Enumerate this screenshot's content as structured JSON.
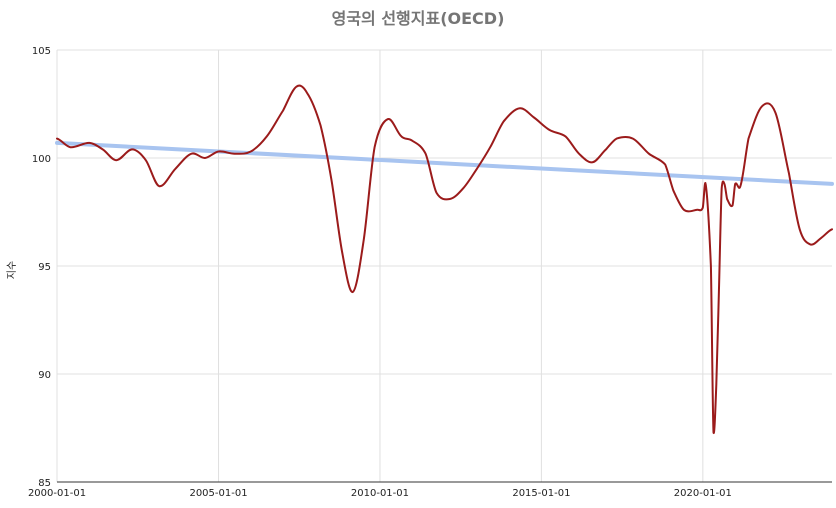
{
  "chart_data": {
    "type": "line",
    "title": "영국의 선행지표(OECD)",
    "ylabel": "지수",
    "xlabel": "",
    "ylim": [
      85,
      105
    ],
    "xlim": [
      "2000-01-01",
      "2024-01-01"
    ],
    "grid": true,
    "yticks": [
      "85",
      "90",
      "95",
      "100",
      "105"
    ],
    "xticks": [
      "2000-01-01",
      "2005-01-01",
      "2010-01-01",
      "2015-01-01",
      "2020-01-01"
    ],
    "colors": {
      "series": "#9b1b1b",
      "trend": "#a8c4f0"
    },
    "trend": {
      "start": [
        "2000-01-01",
        100.7
      ],
      "end": [
        "2024-01-01",
        98.8
      ]
    },
    "series": [
      {
        "points": [
          [
            "2000-01-01",
            100.9
          ],
          [
            "2000-06-01",
            100.5
          ],
          [
            "2001-01-01",
            100.7
          ],
          [
            "2001-06-01",
            100.4
          ],
          [
            "2001-11-01",
            99.9
          ],
          [
            "2002-05-01",
            100.4
          ],
          [
            "2002-10-01",
            99.9
          ],
          [
            "2003-03-01",
            98.7
          ],
          [
            "2003-09-01",
            99.5
          ],
          [
            "2004-03-01",
            100.2
          ],
          [
            "2004-08-01",
            100.0
          ],
          [
            "2005-01-01",
            100.3
          ],
          [
            "2005-07-01",
            100.2
          ],
          [
            "2006-01-01",
            100.3
          ],
          [
            "2006-07-01",
            101.0
          ],
          [
            "2007-01-01",
            102.2
          ],
          [
            "2007-06-01",
            103.3
          ],
          [
            "2007-10-01",
            103.0
          ],
          [
            "2008-03-01",
            101.5
          ],
          [
            "2008-07-01",
            99.0
          ],
          [
            "2008-11-01",
            95.6
          ],
          [
            "2009-03-01",
            93.8
          ],
          [
            "2009-07-01",
            96.2
          ],
          [
            "2009-11-01",
            100.5
          ],
          [
            "2010-04-01",
            101.8
          ],
          [
            "2010-09-01",
            101.0
          ],
          [
            "2011-01-01",
            100.8
          ],
          [
            "2011-06-01",
            100.2
          ],
          [
            "2011-10-01",
            98.4
          ],
          [
            "2012-03-01",
            98.1
          ],
          [
            "2012-08-01",
            98.6
          ],
          [
            "2013-01-01",
            99.5
          ],
          [
            "2013-06-01",
            100.5
          ],
          [
            "2013-11-01",
            101.7
          ],
          [
            "2014-05-01",
            102.3
          ],
          [
            "2014-10-01",
            101.9
          ],
          [
            "2015-04-01",
            101.3
          ],
          [
            "2015-10-01",
            101.0
          ],
          [
            "2016-03-01",
            100.2
          ],
          [
            "2016-08-01",
            99.8
          ],
          [
            "2017-01-01",
            100.4
          ],
          [
            "2017-05-01",
            100.9
          ],
          [
            "2017-11-01",
            100.9
          ],
          [
            "2018-05-01",
            100.2
          ],
          [
            "2018-11-01",
            99.7
          ],
          [
            "2019-02-01",
            98.5
          ],
          [
            "2019-06-01",
            97.6
          ],
          [
            "2019-11-01",
            97.6
          ],
          [
            "2020-01-01",
            97.7
          ],
          [
            "2020-02-01",
            98.8
          ],
          [
            "2020-04-01",
            95.0
          ],
          [
            "2020-05-01",
            87.3
          ],
          [
            "2020-06-01",
            89.5
          ],
          [
            "2020-07-01",
            93.8
          ],
          [
            "2020-08-01",
            98.6
          ],
          [
            "2020-09-01",
            98.8
          ],
          [
            "2020-10-01",
            98.1
          ],
          [
            "2020-12-01",
            97.8
          ],
          [
            "2021-01-01",
            98.8
          ],
          [
            "2021-03-01",
            98.7
          ],
          [
            "2021-06-01",
            100.9
          ],
          [
            "2021-11-01",
            102.4
          ],
          [
            "2022-04-01",
            102.1
          ],
          [
            "2022-09-01",
            99.3
          ],
          [
            "2023-01-01",
            96.7
          ],
          [
            "2023-05-01",
            96.0
          ],
          [
            "2023-09-01",
            96.3
          ],
          [
            "2024-01-01",
            96.7
          ]
        ]
      }
    ]
  }
}
